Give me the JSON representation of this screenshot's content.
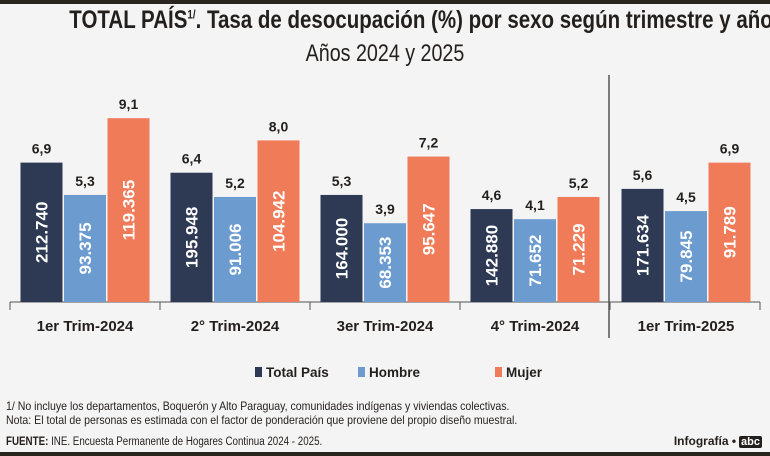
{
  "chart_data": {
    "type": "bar",
    "title": "TOTAL PAÍS",
    "title_sup": "1/",
    "title_rest": ". Tasa de desocupación (%) por sexo según trimestre y año",
    "subtitle": "Años 2024 y 2025",
    "categories": [
      "1er Trim-2024",
      "2° Trim-2024",
      "3er Trim-2024",
      "4° Trim-2024",
      "1er Trim-2025"
    ],
    "series": [
      {
        "name": "Total País",
        "color": "#2e3954",
        "values": [
          6.9,
          6.4,
          5.3,
          4.6,
          5.6
        ],
        "labels": [
          "6,9",
          "6,4",
          "5,3",
          "4,6",
          "5,6"
        ],
        "inner": [
          "212.740",
          "195.948",
          "164.000",
          "142.880",
          "171.634"
        ]
      },
      {
        "name": "Hombre",
        "color": "#6b9bcf",
        "values": [
          5.3,
          5.2,
          3.9,
          4.1,
          4.5
        ],
        "labels": [
          "5,3",
          "5,2",
          "3,9",
          "4,1",
          "4,5"
        ],
        "inner": [
          "93.375",
          "91.006",
          "68.353",
          "71.652",
          "79.845"
        ]
      },
      {
        "name": "Mujer",
        "color": "#ef7b58",
        "values": [
          9.1,
          8.0,
          7.2,
          5.2,
          6.9
        ],
        "labels": [
          "9,1",
          "8,0",
          "7,2",
          "5,2",
          "6,9"
        ],
        "inner": [
          "119.365",
          "104.942",
          "95.647",
          "71.229",
          "91.789"
        ]
      }
    ],
    "ylim": [
      0,
      10
    ],
    "legend": "bottom-center"
  },
  "notes": {
    "note1": "1/ No incluye los departamentos, Boquerón y Alto Paraguay, comunidades indígenas y viviendas colectivas.",
    "note2": "Nota: El total de personas es estimada con el factor de ponderación que proviene del propio diseño muestral.",
    "source_label": "FUENTE:",
    "source": " INE. Encuesta Permanente de Hogares Continua 2024 - 2025.",
    "credit": "Infografía •",
    "logo": "abc"
  }
}
